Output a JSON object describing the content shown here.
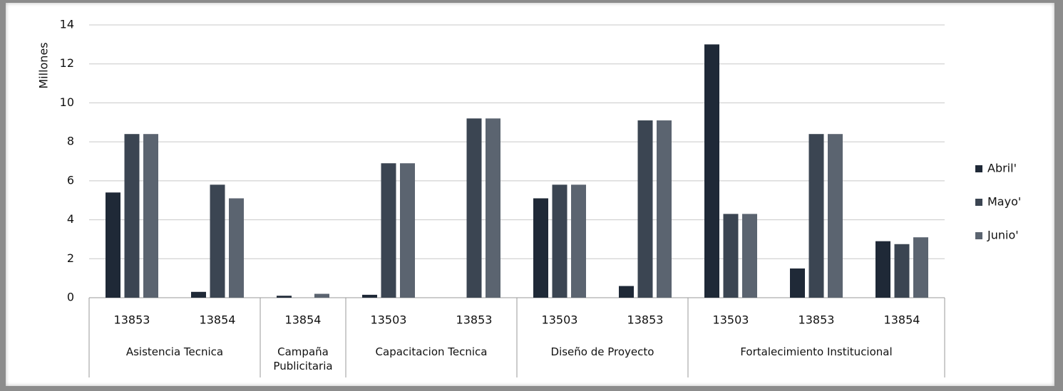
{
  "chart_data": {
    "type": "bar",
    "ylabel": "Millones",
    "groups": [
      {
        "name": "Asistencia Tecnica",
        "categories": [
          "13853",
          "13854"
        ]
      },
      {
        "name": "Campaña Publicitaria",
        "categories": [
          "13854"
        ]
      },
      {
        "name": "Capacitacion Tecnica",
        "categories": [
          "13503",
          "13853"
        ]
      },
      {
        "name": "Diseño de Proyecto",
        "categories": [
          "13503",
          "13853"
        ]
      },
      {
        "name": "Fortalecimiento Institucional",
        "categories": [
          "13503",
          "13853",
          "13854"
        ]
      }
    ],
    "series": [
      {
        "name": "Abril'",
        "color": "#1f2937",
        "values": [
          5.4,
          0.3,
          0.1,
          0.15,
          0,
          5.1,
          0.6,
          13,
          1.5,
          2.9
        ]
      },
      {
        "name": "Mayo'",
        "color": "#3b4552",
        "values": [
          8.4,
          5.8,
          0,
          6.9,
          9.2,
          5.8,
          9.1,
          4.3,
          8.4,
          2.75
        ]
      },
      {
        "name": "Junio'",
        "color": "#5b6470",
        "values": [
          8.4,
          5.1,
          0.2,
          6.9,
          9.2,
          5.8,
          9.1,
          4.3,
          8.4,
          3.1
        ]
      }
    ],
    "ylim": [
      0,
      14
    ],
    "yticks": [
      0,
      2,
      4,
      6,
      8,
      10,
      12,
      14
    ],
    "grid": true,
    "legend": "right"
  }
}
